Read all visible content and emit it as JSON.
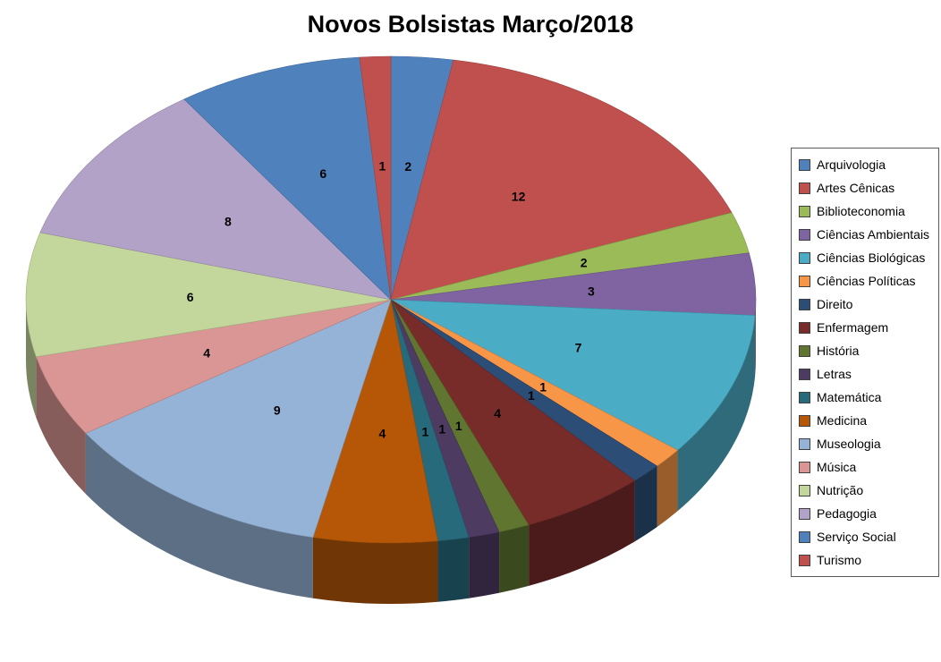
{
  "chart_data": {
    "type": "pie",
    "effect": "3d",
    "title": "Novos Bolsistas Março/2018",
    "data_labels": "value",
    "legend_position": "right",
    "start_angle_deg": -90,
    "direction": "clockwise",
    "total": 73,
    "categories": [
      "Arquivologia",
      "Artes Cênicas",
      "Biblioteconomia",
      "Ciências Ambientais",
      "Ciências Biológicas",
      "Ciências Políticas",
      "Direito",
      "Enfermagem",
      "História",
      "Letras",
      "Matemática",
      "Medicina",
      "Museologia",
      "Música",
      "Nutrição",
      "Pedagogia",
      "Serviço Social",
      "Turismo"
    ],
    "values": [
      2,
      12,
      2,
      3,
      7,
      1,
      1,
      4,
      1,
      1,
      1,
      4,
      9,
      4,
      6,
      8,
      6,
      1
    ],
    "colors": [
      "#4F81BD",
      "#C0504D",
      "#9BBB59",
      "#8064A2",
      "#4BACC6",
      "#F79646",
      "#2C4D75",
      "#772C2A",
      "#5F7530",
      "#4D3B62",
      "#276A7C",
      "#B65708",
      "#95B3D7",
      "#D99694",
      "#C3D69B",
      "#B3A2C7",
      "#4F81BD",
      "#C0504D"
    ],
    "background_color": "#ffffff",
    "legend_border_color": "#595959",
    "label_color": "#000000"
  }
}
